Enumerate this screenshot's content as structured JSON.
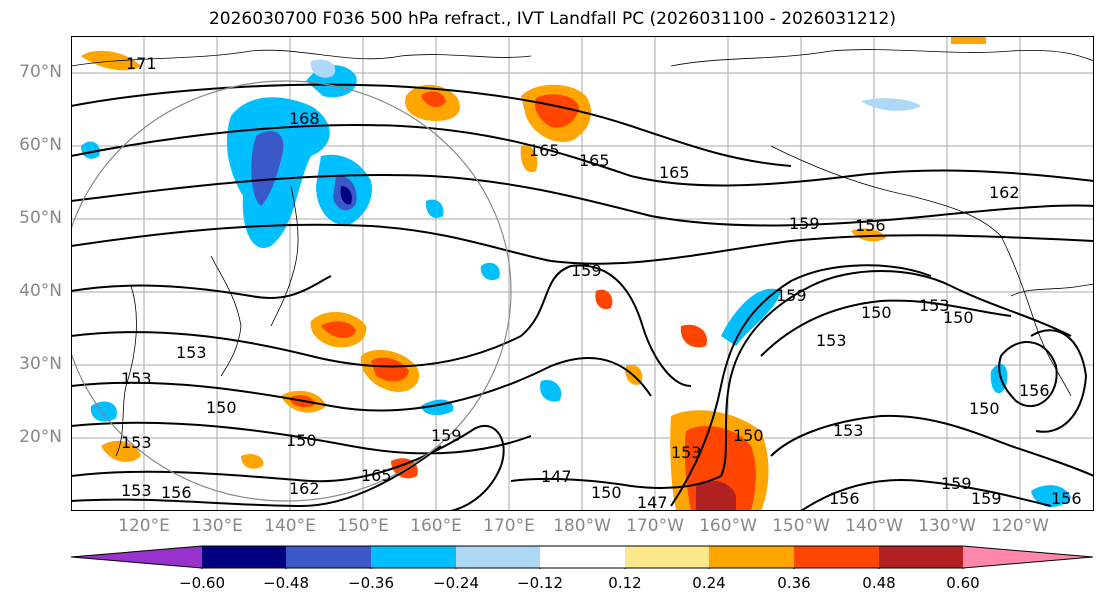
{
  "title": "2026030700 F036 500 hPa refract., IVT Landfall PC (2026031100 - 2026031212)",
  "lat_labels": [
    "70°N",
    "60°N",
    "50°N",
    "40°N",
    "30°N",
    "20°N"
  ],
  "lon_labels": [
    "120°E",
    "130°E",
    "140°E",
    "150°E",
    "160°E",
    "170°E",
    "180°W",
    "170°W",
    "160°W",
    "150°W",
    "140°W",
    "130°W",
    "120°W"
  ],
  "contour_labels": [
    "171",
    "168",
    "165",
    "165",
    "165",
    "162",
    "159",
    "156",
    "159",
    "159",
    "153",
    "153",
    "150",
    "150",
    "150",
    "150",
    "153",
    "153",
    "162",
    "165",
    "159",
    "147",
    "150",
    "147",
    "156",
    "153",
    "159",
    "156",
    "156",
    "153",
    "150",
    "150",
    "156",
    "153",
    "159",
    "153"
  ],
  "colorbar": {
    "tick_labels": [
      "−0.60",
      "−0.48",
      "−0.36",
      "−0.24",
      "−0.12",
      "0.12",
      "0.24",
      "0.36",
      "0.48",
      "0.60"
    ],
    "colors": [
      "#9932cc",
      "#000080",
      "#3b58c8",
      "#00bfff",
      "#add8f8",
      "#ffffff",
      "#ffe88a",
      "#ffa500",
      "#ff4500",
      "#b22222",
      "#ff88aa"
    ]
  }
}
